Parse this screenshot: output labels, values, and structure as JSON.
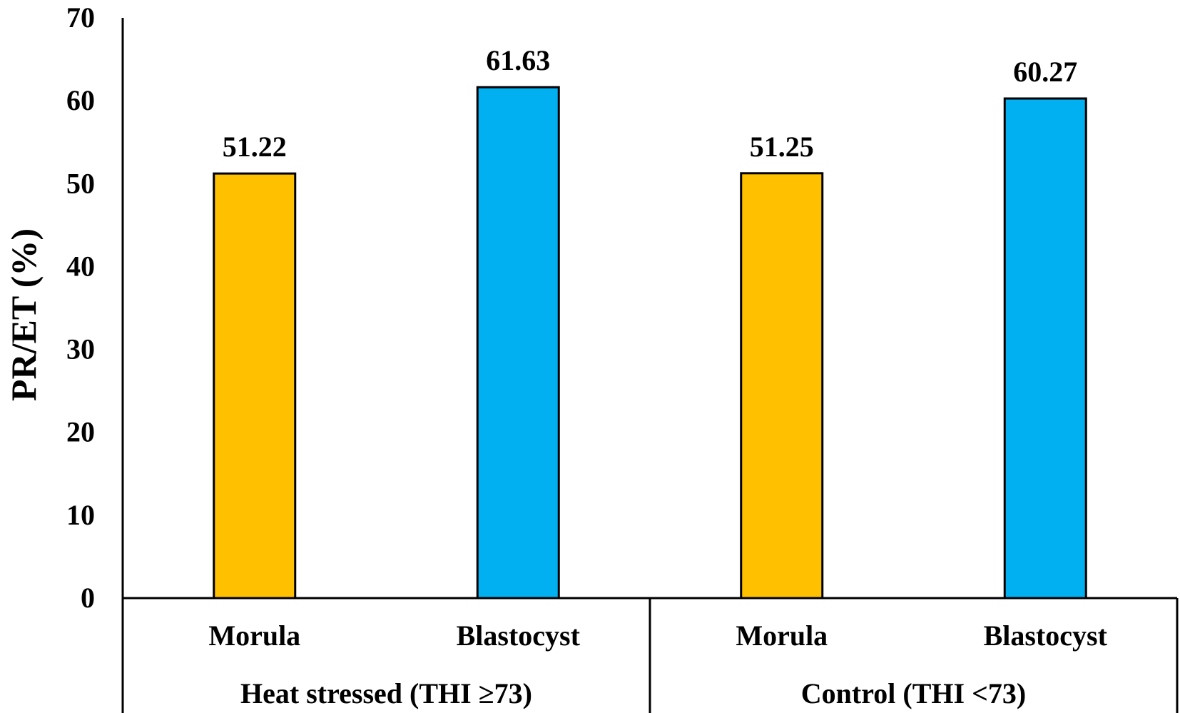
{
  "chart_data": {
    "type": "bar",
    "title": "",
    "ylabel": "PR/ET (%)",
    "ylim": [
      0,
      70
    ],
    "yticks": [
      "0",
      "10",
      "20",
      "30",
      "40",
      "50",
      "60",
      "70"
    ],
    "grid": false,
    "groups": [
      {
        "label": "Heat stressed  (THI ≥73)"
      },
      {
        "label": "Control  (THI <73)"
      }
    ],
    "bars": [
      {
        "category": "Morula",
        "group": 0,
        "value": 51.22,
        "label": "51.22",
        "color": "#FFC000"
      },
      {
        "category": "Blastocyst",
        "group": 0,
        "value": 61.63,
        "label": "61.63",
        "color": "#00B0F0"
      },
      {
        "category": "Morula",
        "group": 1,
        "value": 51.25,
        "label": "51.25",
        "color": "#FFC000"
      },
      {
        "category": "Blastocyst",
        "group": 1,
        "value": 60.27,
        "label": "60.27",
        "color": "#00B0F0"
      }
    ]
  }
}
